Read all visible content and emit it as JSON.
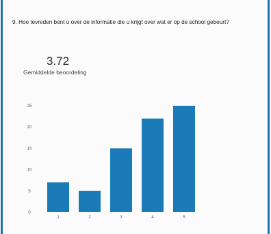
{
  "question": {
    "text": "9. Hoe tevreden bent u over de informatie die u krijgt over wat er op de school gebeurt?"
  },
  "summary": {
    "average": "3.72",
    "average_label": "Gemiddelde beoordeling"
  },
  "colors": {
    "bar": "#1b7bb8",
    "border": "#1f6fb4"
  },
  "chart_data": {
    "type": "bar",
    "categories": [
      "1",
      "2",
      "3",
      "4",
      "5"
    ],
    "values": [
      7,
      5,
      15,
      22,
      25
    ],
    "yticks": [
      0,
      5,
      10,
      15,
      20,
      25
    ],
    "ylim": [
      0,
      25
    ],
    "title": "",
    "xlabel": "",
    "ylabel": "",
    "grid": false,
    "legend": "none"
  }
}
